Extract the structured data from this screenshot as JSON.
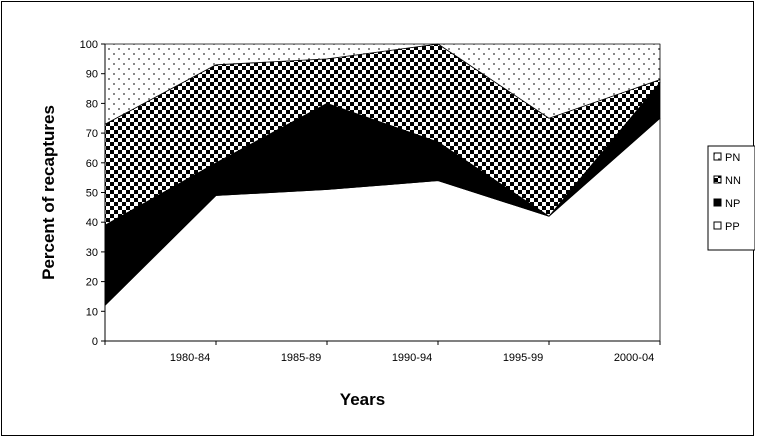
{
  "chart_data": {
    "type": "area",
    "stacked": true,
    "categories": [
      "",
      "1980-84",
      "1985-89",
      "1990-94",
      "1995-99",
      "2000-04"
    ],
    "series": [
      {
        "name": "PP",
        "values": [
          12,
          49,
          51,
          54,
          42,
          75
        ],
        "color": "#ffffff",
        "pattern": "solid-white"
      },
      {
        "name": "NP",
        "values": [
          27,
          11,
          29,
          13,
          0,
          12
        ],
        "color": "#000000",
        "pattern": "solid-black"
      },
      {
        "name": "NN",
        "values": [
          34,
          33,
          15,
          33,
          33,
          1
        ],
        "color": "#000000",
        "pattern": "checker"
      },
      {
        "name": "PN",
        "values": [
          27,
          7,
          5,
          0,
          25,
          12
        ],
        "color": "#000000",
        "pattern": "dots"
      }
    ],
    "legend_order": [
      "PN",
      "NN",
      "NP",
      "PP"
    ],
    "xlabel": "Years",
    "ylabel": "Percent of recaptures",
    "ylim": [
      0,
      100
    ],
    "yticks": [
      0,
      10,
      20,
      30,
      40,
      50,
      60,
      70,
      80,
      90,
      100
    ],
    "grid": false,
    "legend_position": "right"
  }
}
